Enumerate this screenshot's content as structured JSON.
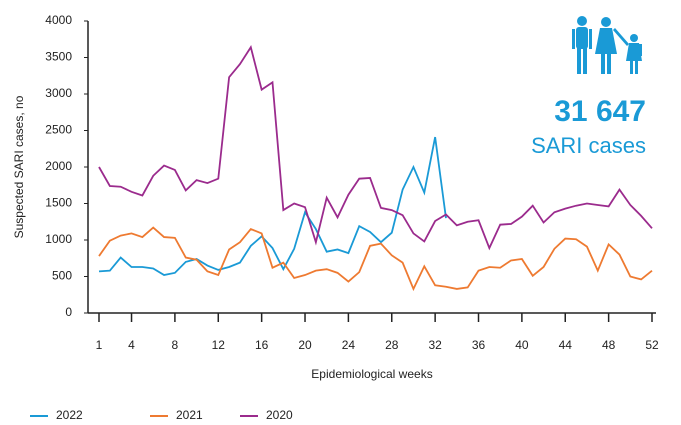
{
  "chart_data": {
    "type": "line",
    "y_label": "Suspected SARI cases, no",
    "x_label": "Epidemiological weeks",
    "annotation": {
      "number": "31 647",
      "text": "SARI cases"
    },
    "x": [
      1,
      2,
      3,
      4,
      5,
      6,
      7,
      8,
      9,
      10,
      11,
      12,
      13,
      14,
      15,
      16,
      17,
      18,
      19,
      20,
      21,
      22,
      23,
      24,
      25,
      26,
      27,
      28,
      29,
      30,
      31,
      32,
      33,
      34,
      35,
      36,
      37,
      38,
      39,
      40,
      41,
      42,
      43,
      44,
      45,
      46,
      47,
      48,
      49,
      50,
      51,
      52
    ],
    "xlim": [
      1,
      52
    ],
    "xticks": [
      1,
      4,
      8,
      12,
      16,
      20,
      24,
      28,
      32,
      36,
      40,
      44,
      48,
      52
    ],
    "ylim": [
      0,
      4000
    ],
    "yticks": [
      0,
      500,
      1000,
      1500,
      2000,
      2500,
      3000,
      3500,
      4000
    ],
    "grid": false,
    "series": [
      {
        "name": "2022",
        "color": "#1a9ad6",
        "values": [
          570,
          580,
          760,
          630,
          630,
          610,
          520,
          550,
          700,
          740,
          650,
          590,
          630,
          690,
          920,
          1050,
          890,
          600,
          880,
          1380,
          1150,
          840,
          870,
          820,
          1190,
          1110,
          970,
          1100,
          1690,
          2000,
          1650,
          2410,
          1300,
          null,
          null,
          null,
          null,
          null,
          null,
          null,
          null,
          null,
          null,
          null,
          null,
          null,
          null,
          null,
          null,
          null,
          null,
          null
        ]
      },
      {
        "name": "2021",
        "color": "#ee7a31",
        "values": [
          780,
          990,
          1060,
          1090,
          1040,
          1170,
          1040,
          1030,
          760,
          730,
          570,
          520,
          870,
          970,
          1150,
          1090,
          620,
          690,
          480,
          520,
          580,
          600,
          550,
          430,
          560,
          920,
          950,
          790,
          690,
          330,
          640,
          380,
          360,
          330,
          350,
          580,
          630,
          620,
          720,
          740,
          510,
          630,
          880,
          1020,
          1010,
          910,
          580,
          940,
          800,
          500,
          460,
          580
        ]
      },
      {
        "name": "2020",
        "color": "#9b2b8d",
        "values": [
          2000,
          1740,
          1730,
          1660,
          1610,
          1880,
          2020,
          1960,
          1680,
          1820,
          1780,
          1840,
          3230,
          3410,
          3640,
          3060,
          3160,
          1410,
          1500,
          1450,
          970,
          1580,
          1310,
          1620,
          1840,
          1850,
          1440,
          1410,
          1340,
          1090,
          980,
          1260,
          1350,
          1200,
          1250,
          1270,
          890,
          1210,
          1220,
          1320,
          1470,
          1240,
          1380,
          1430,
          1470,
          1500,
          1480,
          1460,
          1690,
          1480,
          1330,
          1160
        ]
      }
    ]
  }
}
